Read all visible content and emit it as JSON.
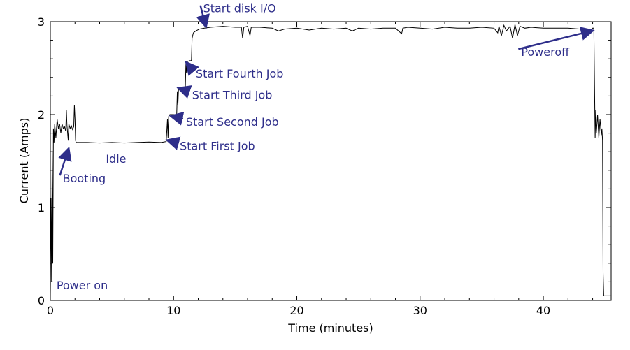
{
  "chart_data": {
    "type": "line",
    "title": "",
    "xlabel": "Time (minutes)",
    "ylabel": "Current (Amps)",
    "xlim": [
      0,
      45.5
    ],
    "ylim": [
      0,
      3
    ],
    "x_ticks": [
      0,
      10,
      20,
      30,
      40
    ],
    "y_ticks": [
      0,
      1,
      2,
      3
    ],
    "grid": false,
    "legend": "none",
    "line_color": "#000000",
    "annotation_color": "#2e2e8a",
    "series": [
      {
        "values": [
          [
            0.0,
            0.05
          ],
          [
            0.05,
            1.1
          ],
          [
            0.1,
            0.2
          ],
          [
            0.15,
            1.6
          ],
          [
            0.2,
            0.4
          ],
          [
            0.25,
            1.85
          ],
          [
            0.3,
            1.7
          ],
          [
            0.35,
            1.9
          ],
          [
            0.45,
            1.75
          ],
          [
            0.55,
            1.95
          ],
          [
            0.65,
            1.85
          ],
          [
            0.75,
            1.9
          ],
          [
            0.85,
            1.8
          ],
          [
            0.95,
            1.9
          ],
          [
            1.05,
            1.85
          ],
          [
            1.15,
            1.87
          ],
          [
            1.25,
            1.82
          ],
          [
            1.3,
            2.05
          ],
          [
            1.35,
            1.88
          ],
          [
            1.45,
            1.72
          ],
          [
            1.5,
            1.9
          ],
          [
            1.6,
            1.85
          ],
          [
            1.7,
            1.88
          ],
          [
            1.8,
            1.84
          ],
          [
            1.9,
            1.87
          ],
          [
            1.95,
            2.1
          ],
          [
            2.0,
            1.95
          ],
          [
            2.05,
            1.72
          ],
          [
            2.1,
            1.7
          ],
          [
            3.0,
            1.7
          ],
          [
            4.0,
            1.695
          ],
          [
            5.0,
            1.7
          ],
          [
            6.0,
            1.695
          ],
          [
            7.0,
            1.7
          ],
          [
            8.0,
            1.705
          ],
          [
            9.0,
            1.7
          ],
          [
            9.4,
            1.71
          ],
          [
            9.5,
            1.95
          ],
          [
            9.55,
            1.75
          ],
          [
            9.6,
            1.98
          ],
          [
            9.7,
            2.0
          ],
          [
            10.0,
            2.0
          ],
          [
            10.25,
            2.0
          ],
          [
            10.3,
            2.25
          ],
          [
            10.35,
            2.1
          ],
          [
            10.4,
            2.27
          ],
          [
            10.6,
            2.28
          ],
          [
            10.95,
            2.28
          ],
          [
            11.0,
            2.55
          ],
          [
            11.05,
            2.45
          ],
          [
            11.1,
            2.57
          ],
          [
            11.3,
            2.58
          ],
          [
            11.45,
            2.58
          ],
          [
            11.5,
            2.82
          ],
          [
            11.6,
            2.88
          ],
          [
            11.8,
            2.9
          ],
          [
            12.1,
            2.92
          ],
          [
            12.5,
            2.93
          ],
          [
            13.0,
            2.94
          ],
          [
            14.0,
            2.95
          ],
          [
            15.0,
            2.94
          ],
          [
            15.5,
            2.94
          ],
          [
            15.6,
            2.82
          ],
          [
            15.7,
            2.94
          ],
          [
            16.0,
            2.95
          ],
          [
            16.2,
            2.85
          ],
          [
            16.3,
            2.94
          ],
          [
            17.0,
            2.94
          ],
          [
            18.0,
            2.93
          ],
          [
            18.5,
            2.9
          ],
          [
            19.0,
            2.92
          ],
          [
            20.0,
            2.93
          ],
          [
            21.0,
            2.91
          ],
          [
            22.0,
            2.93
          ],
          [
            23.0,
            2.92
          ],
          [
            24.0,
            2.93
          ],
          [
            24.5,
            2.9
          ],
          [
            25.0,
            2.93
          ],
          [
            26.0,
            2.92
          ],
          [
            27.0,
            2.93
          ],
          [
            28.0,
            2.93
          ],
          [
            28.5,
            2.87
          ],
          [
            28.6,
            2.93
          ],
          [
            29.0,
            2.94
          ],
          [
            30.0,
            2.93
          ],
          [
            31.0,
            2.92
          ],
          [
            32.0,
            2.94
          ],
          [
            33.0,
            2.93
          ],
          [
            34.0,
            2.93
          ],
          [
            35.0,
            2.94
          ],
          [
            36.0,
            2.93
          ],
          [
            36.3,
            2.88
          ],
          [
            36.4,
            2.95
          ],
          [
            36.6,
            2.85
          ],
          [
            36.8,
            2.96
          ],
          [
            37.0,
            2.9
          ],
          [
            37.3,
            2.95
          ],
          [
            37.5,
            2.82
          ],
          [
            37.7,
            2.97
          ],
          [
            37.9,
            2.85
          ],
          [
            38.1,
            2.95
          ],
          [
            38.5,
            2.93
          ],
          [
            39.0,
            2.94
          ],
          [
            40.0,
            2.93
          ],
          [
            41.0,
            2.93
          ],
          [
            42.0,
            2.93
          ],
          [
            43.0,
            2.92
          ],
          [
            43.8,
            2.9
          ],
          [
            44.0,
            2.93
          ],
          [
            44.1,
            2.93
          ],
          [
            44.2,
            1.75
          ],
          [
            44.25,
            2.05
          ],
          [
            44.3,
            1.8
          ],
          [
            44.4,
            2.0
          ],
          [
            44.5,
            1.75
          ],
          [
            44.6,
            1.95
          ],
          [
            44.7,
            1.78
          ],
          [
            44.75,
            1.85
          ],
          [
            44.8,
            1.72
          ],
          [
            44.85,
            0.3
          ],
          [
            44.9,
            0.05
          ],
          [
            45.0,
            0.05
          ],
          [
            45.5,
            0.05
          ]
        ]
      }
    ],
    "annotations": [
      {
        "text": "Power on",
        "x": 0.5,
        "y": 0.12,
        "arrow": false
      },
      {
        "text": "Booting",
        "x": 1.0,
        "y": 1.27,
        "arrow": true,
        "arrow_to": [
          1.45,
          1.62
        ]
      },
      {
        "text": "Idle",
        "x": 4.5,
        "y": 1.48,
        "arrow": false
      },
      {
        "text": "Start First Job",
        "x": 10.5,
        "y": 1.62,
        "arrow": true,
        "arrow_to": [
          9.6,
          1.72
        ]
      },
      {
        "text": "Start Second Job",
        "x": 11.0,
        "y": 1.88,
        "arrow": true,
        "arrow_to": [
          9.9,
          1.98
        ]
      },
      {
        "text": "Start Third Job",
        "x": 11.5,
        "y": 2.17,
        "arrow": true,
        "arrow_to": [
          10.5,
          2.28
        ]
      },
      {
        "text": "Start Fourth Job",
        "x": 11.8,
        "y": 2.4,
        "arrow": true,
        "arrow_to": [
          11.1,
          2.55
        ]
      },
      {
        "text": "Start disk I/O",
        "x": 12.4,
        "y": 3.1,
        "arrow": true,
        "arrow_to": [
          12.6,
          2.96
        ]
      },
      {
        "text": "Poweroff",
        "x": 38.2,
        "y": 2.63,
        "arrow": true,
        "arrow_to": [
          43.9,
          2.9
        ]
      }
    ]
  }
}
